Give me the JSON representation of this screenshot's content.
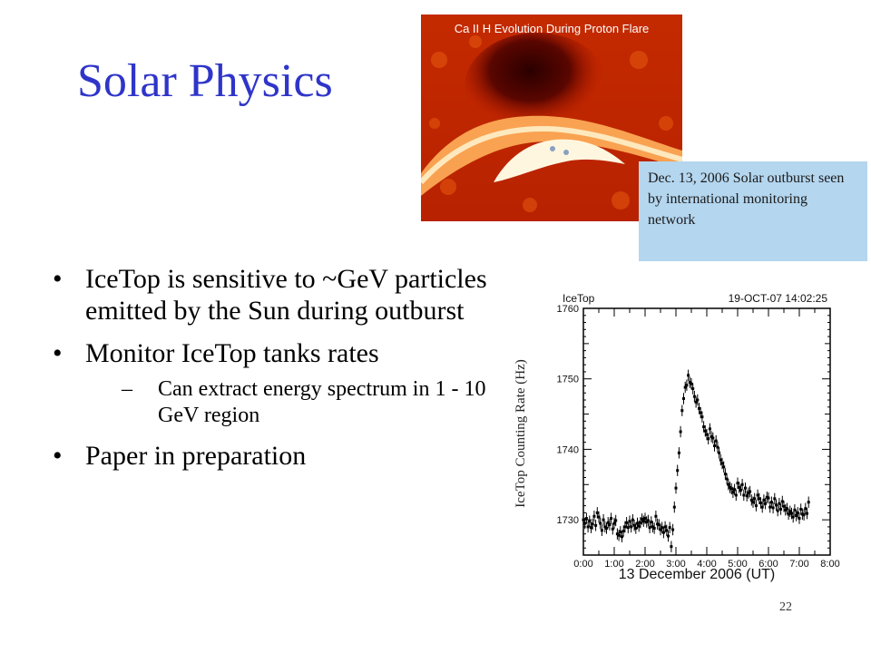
{
  "slide": {
    "title": "Solar Physics",
    "page_number": "22",
    "image_caption": "Ca II H Evolution During Proton Flare",
    "callout": "Dec. 13, 2006 Solar outburst seen by international monitoring network"
  },
  "bullets": [
    {
      "text": "IceTop is sensitive to  ~GeV particles emitted by the Sun during outburst"
    },
    {
      "text": "Monitor IceTop tanks rates",
      "sub": [
        "Can extract energy spectrum in 1 - 10 GeV region"
      ]
    },
    {
      "text": "Paper in preparation"
    }
  ],
  "chart_data": {
    "type": "scatter",
    "title_left": "IceTop",
    "title_right": "19-OCT-07 14:02:25",
    "xlabel": "13 December 2006 (UT)",
    "ylabel": "IceTop Counting Rate (Hz)",
    "x_ticks": [
      "0:00",
      "1:00",
      "2:00",
      "3:00",
      "4:00",
      "5:00",
      "6:00",
      "7:00",
      "8:00"
    ],
    "y_ticks": [
      1730,
      1740,
      1750,
      1760
    ],
    "xlim": [
      0,
      8
    ],
    "ylim": [
      1725,
      1760
    ],
    "error": 0.8,
    "x": [
      0.0,
      0.05,
      0.1,
      0.15,
      0.2,
      0.25,
      0.3,
      0.35,
      0.4,
      0.45,
      0.5,
      0.55,
      0.6,
      0.65,
      0.7,
      0.75,
      0.8,
      0.85,
      0.9,
      0.95,
      1.0,
      1.05,
      1.1,
      1.15,
      1.2,
      1.25,
      1.3,
      1.35,
      1.4,
      1.45,
      1.5,
      1.55,
      1.6,
      1.65,
      1.7,
      1.75,
      1.8,
      1.85,
      1.9,
      1.95,
      2.0,
      2.05,
      2.1,
      2.15,
      2.2,
      2.25,
      2.3,
      2.35,
      2.4,
      2.45,
      2.5,
      2.55,
      2.6,
      2.65,
      2.7,
      2.75,
      2.8,
      2.85,
      2.9,
      2.95,
      3.0,
      3.05,
      3.1,
      3.15,
      3.2,
      3.25,
      3.3,
      3.35,
      3.4,
      3.45,
      3.5,
      3.55,
      3.6,
      3.65,
      3.7,
      3.75,
      3.8,
      3.85,
      3.9,
      3.95,
      4.0,
      4.05,
      4.1,
      4.15,
      4.2,
      4.25,
      4.3,
      4.35,
      4.4,
      4.45,
      4.5,
      4.55,
      4.6,
      4.65,
      4.7,
      4.75,
      4.8,
      4.85,
      4.9,
      4.95,
      5.0,
      5.05,
      5.1,
      5.15,
      5.2,
      5.25,
      5.3,
      5.35,
      5.4,
      5.45,
      5.5,
      5.55,
      5.6,
      5.65,
      5.7,
      5.75,
      5.8,
      5.85,
      5.9,
      5.95,
      6.0,
      6.05,
      6.1,
      6.15,
      6.2,
      6.25,
      6.3,
      6.35,
      6.4,
      6.45,
      6.5,
      6.55,
      6.6,
      6.65,
      6.7,
      6.75,
      6.8,
      6.85,
      6.9,
      6.95,
      7.0,
      7.05,
      7.1,
      7.15,
      7.2,
      7.25,
      7.3
    ],
    "y": [
      1730.0,
      1729.5,
      1730.2,
      1729.0,
      1729.8,
      1728.9,
      1729.4,
      1730.5,
      1729.2,
      1731.0,
      1730.4,
      1729.5,
      1728.5,
      1730.0,
      1729.0,
      1728.8,
      1729.6,
      1729.3,
      1730.2,
      1728.7,
      1729.5,
      1729.9,
      1728.0,
      1727.8,
      1728.3,
      1727.6,
      1728.4,
      1729.0,
      1729.6,
      1728.9,
      1729.8,
      1729.0,
      1730.0,
      1729.2,
      1728.8,
      1729.5,
      1729.1,
      1729.6,
      1730.1,
      1729.8,
      1730.2,
      1729.7,
      1729.9,
      1728.9,
      1729.7,
      1729.0,
      1728.8,
      1730.5,
      1729.4,
      1729.3,
      1728.6,
      1728.9,
      1728.2,
      1729.0,
      1728.5,
      1727.7,
      1728.9,
      1726.2,
      1728.6,
      1731.8,
      1734.5,
      1737.0,
      1739.5,
      1742.5,
      1745.5,
      1747.2,
      1748.8,
      1749.1,
      1750.5,
      1749.5,
      1749.3,
      1748.6,
      1747.5,
      1746.7,
      1747.0,
      1745.8,
      1745.2,
      1744.6,
      1743.2,
      1742.6,
      1742.1,
      1741.5,
      1742.9,
      1741.8,
      1741.6,
      1740.5,
      1741.2,
      1740.3,
      1739.5,
      1738.5,
      1738.0,
      1737.5,
      1736.5,
      1735.8,
      1735.0,
      1734.6,
      1734.4,
      1733.9,
      1734.3,
      1733.5,
      1735.2,
      1734.6,
      1734.2,
      1735.0,
      1733.5,
      1734.5,
      1733.4,
      1733.8,
      1734.0,
      1732.8,
      1732.5,
      1733.0,
      1732.0,
      1733.5,
      1733.0,
      1732.4,
      1731.8,
      1732.8,
      1732.3,
      1733.2,
      1733.1,
      1731.8,
      1732.5,
      1731.7,
      1733.0,
      1732.1,
      1731.3,
      1732.3,
      1731.5,
      1732.6,
      1731.9,
      1731.4,
      1731.6,
      1730.8,
      1731.2,
      1730.9,
      1730.4,
      1731.4,
      1730.6,
      1731.0,
      1730.2,
      1731.5,
      1730.8,
      1730.7,
      1731.6,
      1730.9,
      1732.5
    ]
  }
}
